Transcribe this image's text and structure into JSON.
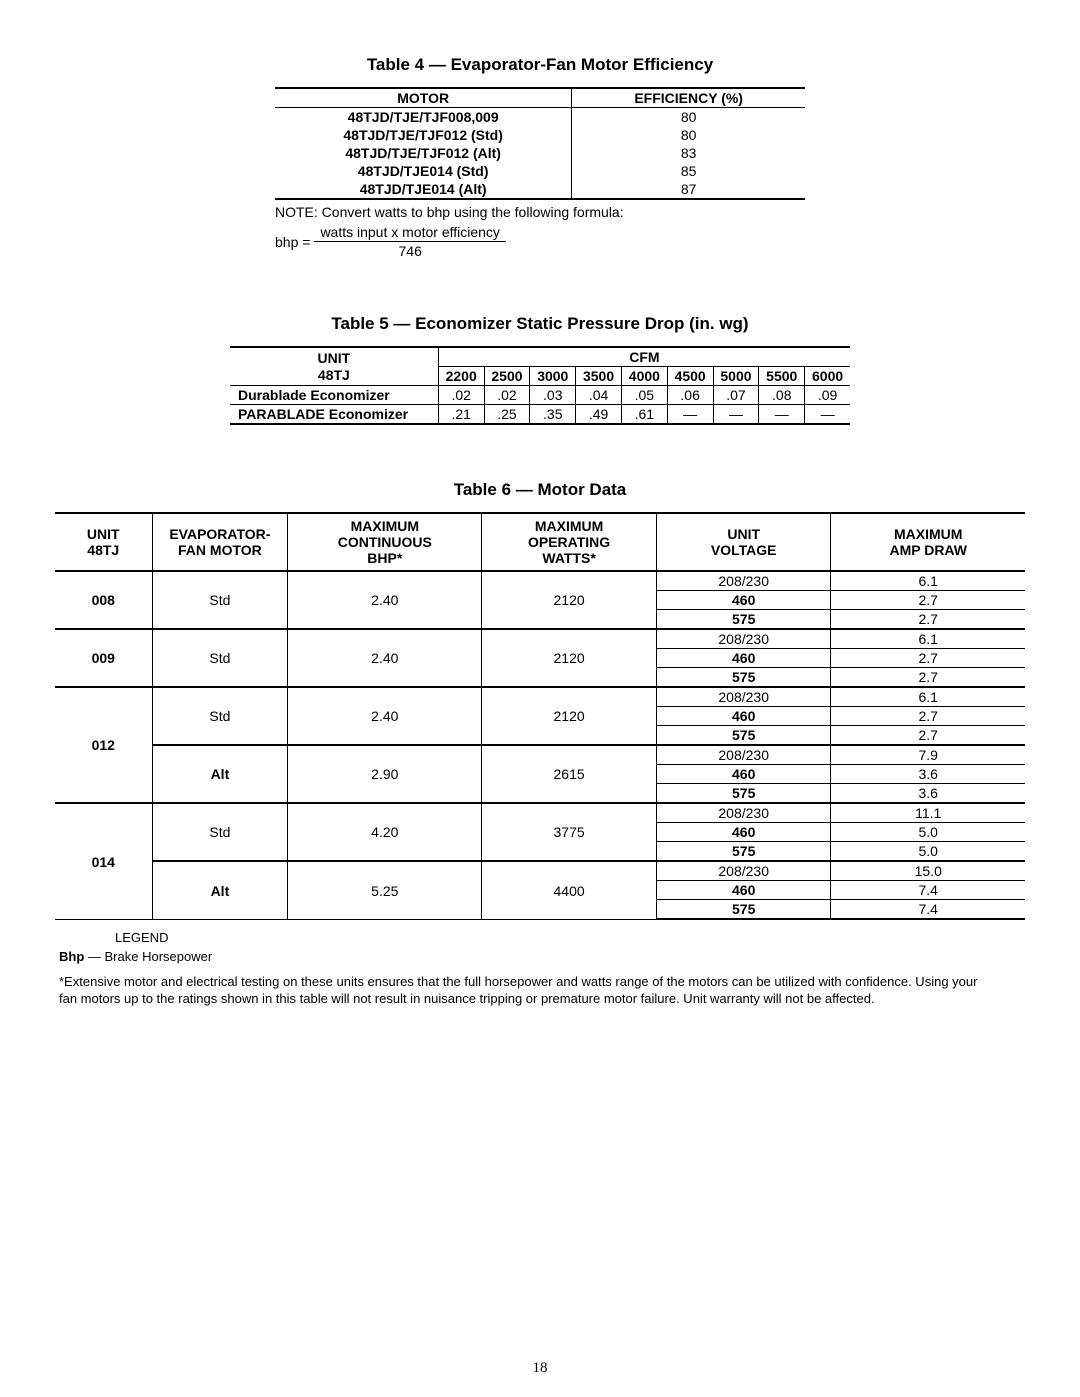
{
  "page_number": "18",
  "table4": {
    "title": "Table 4 — Evaporator-Fan Motor Efficiency",
    "headers": [
      "MOTOR",
      "EFFICIENCY (%)"
    ],
    "rows": [
      [
        "48TJD/TJE/TJF008,009",
        "80"
      ],
      [
        "48TJD/TJE/TJF012 (Std)",
        "80"
      ],
      [
        "48TJD/TJE/TJF012 (Alt)",
        "83"
      ],
      [
        "48TJD/TJE014 (Std)",
        "85"
      ],
      [
        "48TJD/TJE014 (Alt)",
        "87"
      ]
    ],
    "note": "NOTE: Convert watts to bhp using the following formula:",
    "formula_lhs": "bhp =",
    "formula_num": "watts input x motor efficiency",
    "formula_den": "746"
  },
  "table5": {
    "title": "Table 5 — Economizer Static Pressure Drop (in. wg)",
    "unit_hdr_l1": "UNIT",
    "unit_hdr_l2": "48TJ",
    "cfm_label": "CFM",
    "cfm_cols": [
      "2200",
      "2500",
      "3000",
      "3500",
      "4000",
      "4500",
      "5000",
      "5500",
      "6000"
    ],
    "rows": [
      {
        "label": "Durablade Economizer",
        "vals": [
          ".02",
          ".02",
          ".03",
          ".04",
          ".05",
          ".06",
          ".07",
          ".08",
          ".09"
        ]
      },
      {
        "label": "PARABLADE Economizer",
        "vals": [
          ".21",
          ".25",
          ".35",
          ".49",
          ".61",
          "—",
          "—",
          "—",
          "—"
        ]
      }
    ]
  },
  "table6": {
    "title": "Table 6 — Motor Data",
    "headers": {
      "h1": "UNIT\n48TJ",
      "h2": "EVAPORATOR-\nFAN MOTOR",
      "h3": "MAXIMUM\nCONTINUOUS\nBHP*",
      "h4": "MAXIMUM\nOPERATING\nWATTS*",
      "h5": "UNIT\nVOLTAGE",
      "h6": "MAXIMUM\nAMP DRAW"
    },
    "groups": [
      {
        "unit": "008",
        "subs": [
          {
            "motor": "Std",
            "bhp": "2.40",
            "watts": "2120",
            "rows": [
              [
                "208/230",
                "6.1"
              ],
              [
                "460",
                "2.7"
              ],
              [
                "575",
                "2.7"
              ]
            ]
          }
        ]
      },
      {
        "unit": "009",
        "subs": [
          {
            "motor": "Std",
            "bhp": "2.40",
            "watts": "2120",
            "rows": [
              [
                "208/230",
                "6.1"
              ],
              [
                "460",
                "2.7"
              ],
              [
                "575",
                "2.7"
              ]
            ]
          }
        ]
      },
      {
        "unit": "012",
        "subs": [
          {
            "motor": "Std",
            "bhp": "2.40",
            "watts": "2120",
            "rows": [
              [
                "208/230",
                "6.1"
              ],
              [
                "460",
                "2.7"
              ],
              [
                "575",
                "2.7"
              ]
            ]
          },
          {
            "motor": "Alt",
            "bhp": "2.90",
            "watts": "2615",
            "rows": [
              [
                "208/230",
                "7.9"
              ],
              [
                "460",
                "3.6"
              ],
              [
                "575",
                "3.6"
              ]
            ]
          }
        ]
      },
      {
        "unit": "014",
        "subs": [
          {
            "motor": "Std",
            "bhp": "4.20",
            "watts": "3775",
            "rows": [
              [
                "208/230",
                "11.1"
              ],
              [
                "460",
                "5.0"
              ],
              [
                "575",
                "5.0"
              ]
            ]
          },
          {
            "motor": "Alt",
            "bhp": "5.25",
            "watts": "4400",
            "rows": [
              [
                "208/230",
                "15.0"
              ],
              [
                "460",
                "7.4"
              ],
              [
                "575",
                "7.4"
              ]
            ]
          }
        ]
      }
    ]
  },
  "legend_label": "LEGEND",
  "bhp_abbrev": "Bhp",
  "bhp_dash": " — ",
  "bhp_def": "Brake Horsepower",
  "footnote": "*Extensive motor and electrical testing on these units ensures that the full horsepower and watts range of the motors can be utilized with confidence. Using your fan motors up to the ratings shown in this table will not result in nuisance tripping or premature motor failure. Unit warranty will not be affected.",
  "colors": {
    "text": "#000000",
    "bg": "#ffffff",
    "rule": "#000000"
  },
  "fonts": {
    "body": "Arial",
    "body_size_pt": 10,
    "title_size_pt": 12
  }
}
